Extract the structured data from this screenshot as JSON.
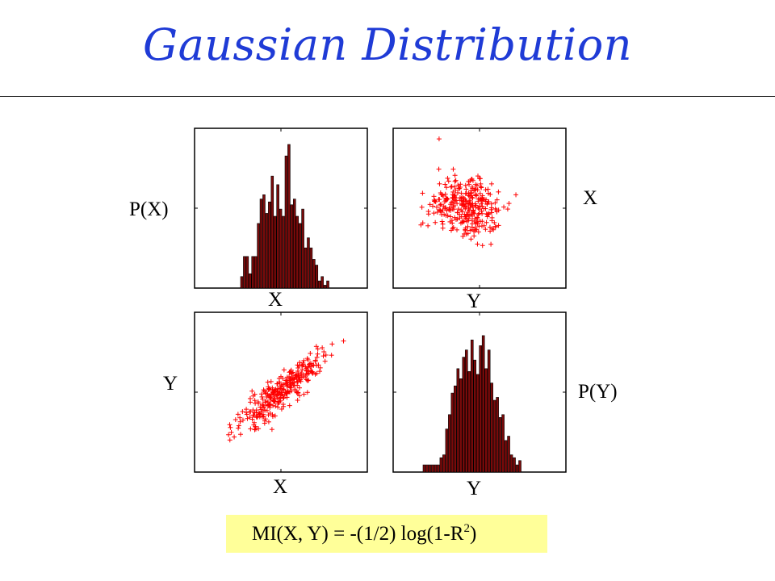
{
  "title": "Gaussian Distribution",
  "labels": {
    "px": "P(X)",
    "top_left_x": "X",
    "top_right_y": "Y",
    "right_x": "X",
    "left_y": "Y",
    "bottom_left_x": "X",
    "bottom_right_y": "Y",
    "py": "P(Y)"
  },
  "formula": {
    "main": "MI(X, Y) = -(1/2) log(1-R",
    "sup": "2",
    "tail": ")"
  },
  "colors": {
    "title": "#1f3bd6",
    "bar_fill": "#7a0a0a",
    "scatter": "#ff0000",
    "formula_bg": "#ffff99"
  },
  "chart_data": [
    {
      "type": "bar",
      "id": "hist-x",
      "values": [
        0.08,
        0.22,
        0.22,
        0.1,
        0.22,
        0.22,
        0.45,
        0.62,
        0.65,
        0.52,
        0.6,
        0.78,
        0.5,
        0.72,
        0.55,
        0.5,
        0.92,
        1.0,
        0.58,
        0.62,
        0.5,
        0.45,
        0.55,
        0.28,
        0.35,
        0.28,
        0.2,
        0.16,
        0.05,
        0.08,
        0.02,
        0.05
      ]
    },
    {
      "type": "scatter",
      "id": "scatter-xy-top",
      "correlation": "none"
    },
    {
      "type": "scatter",
      "id": "scatter-xy-bottom",
      "correlation": "strong-positive"
    },
    {
      "type": "bar",
      "id": "hist-y",
      "values": [
        0.05,
        0.05,
        0.05,
        0.05,
        0.05,
        0.05,
        0.1,
        0.12,
        0.3,
        0.4,
        0.55,
        0.6,
        0.72,
        0.65,
        0.8,
        0.85,
        0.7,
        0.92,
        0.78,
        0.68,
        0.88,
        0.95,
        0.72,
        0.85,
        0.62,
        0.5,
        0.52,
        0.38,
        0.4,
        0.22,
        0.25,
        0.12,
        0.1,
        0.05,
        0.08
      ]
    }
  ]
}
